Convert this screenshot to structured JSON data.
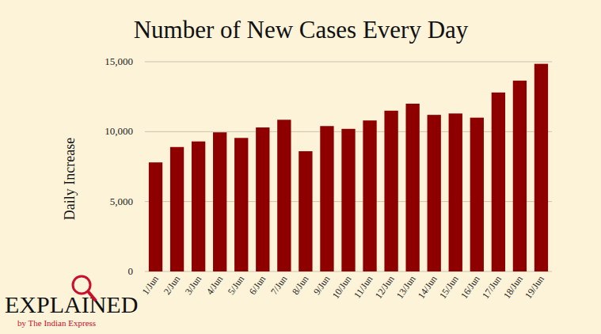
{
  "chart_data": {
    "type": "bar",
    "title": "Number of New Cases Every Day",
    "y_label": "Daily Increase",
    "categories": [
      "1/Jun",
      "2/Jun",
      "3/Jun",
      "4/Jun",
      "5/Jun",
      "6/Jun",
      "7/Jun",
      "8/Jun",
      "9/Jun",
      "10/Jun",
      "11/Jun",
      "12/Jun",
      "13/Jun",
      "14/Jun",
      "15/Jun",
      "16/Jun",
      "17/Jun",
      "18/Jun",
      "19/Jun"
    ],
    "values": [
      7800,
      8900,
      9300,
      9950,
      9550,
      10300,
      10850,
      8600,
      10400,
      10200,
      10800,
      11500,
      12000,
      11200,
      11300,
      11000,
      12800,
      13650,
      14850
    ],
    "color": "#8e0000",
    "ylim": [
      0,
      15000
    ],
    "yticks": [
      0,
      {
        "value": 5000,
        "label": "5,000"
      },
      {
        "value": 10000,
        "label": "10,000"
      },
      {
        "value": 15000,
        "label": "15,000"
      }
    ],
    "grid": true,
    "annotations": [
      "EXPLAINED",
      "by The Indian Express"
    ]
  }
}
